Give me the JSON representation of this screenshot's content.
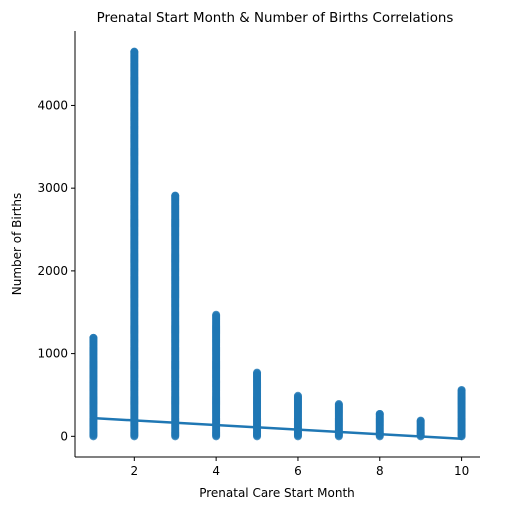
{
  "chart_data": {
    "type": "scatter",
    "title": "Prenatal Start Month & Number of Births Correlations",
    "xlabel": "Prenatal Care Start Month",
    "ylabel": "Number of Births",
    "xlim": [
      0.55,
      10.45
    ],
    "ylim": [
      -250,
      4900
    ],
    "xticks": [
      2,
      4,
      6,
      8,
      10
    ],
    "yticks": [
      0,
      1000,
      2000,
      3000,
      4000
    ],
    "grid": false,
    "color": "#1f77b4",
    "series": [
      {
        "points": [
          {
            "x": 1,
            "min": 0,
            "max": 1190
          },
          {
            "x": 2,
            "min": 0,
            "max": 4650
          },
          {
            "x": 3,
            "min": 0,
            "max": 2910
          },
          {
            "x": 4,
            "min": 0,
            "max": 1470
          },
          {
            "x": 5,
            "min": 0,
            "max": 770
          },
          {
            "x": 6,
            "min": 0,
            "max": 490
          },
          {
            "x": 7,
            "min": 0,
            "max": 390
          },
          {
            "x": 8,
            "min": 0,
            "max": 270
          },
          {
            "x": 9,
            "min": 0,
            "max": 190
          },
          {
            "x": 10,
            "min": 0,
            "max": 560
          }
        ]
      }
    ],
    "regression_line": {
      "x": [
        1,
        10
      ],
      "y": [
        220,
        -30
      ]
    }
  }
}
